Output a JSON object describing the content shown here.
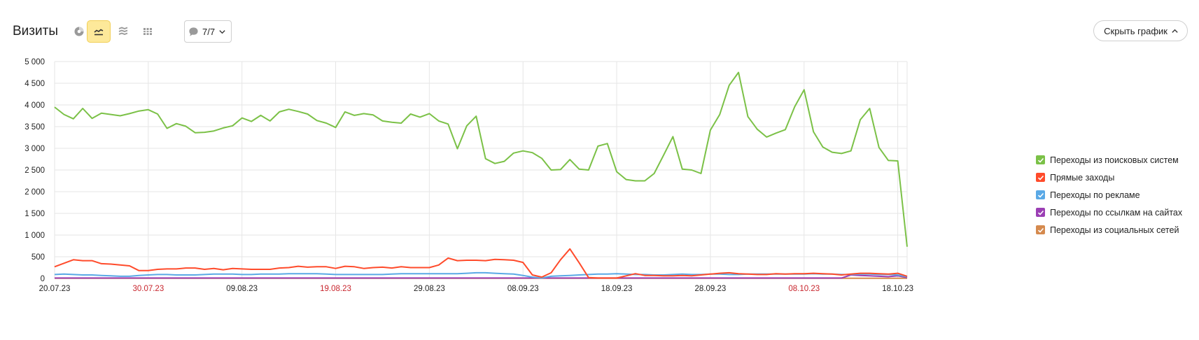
{
  "toolbar": {
    "title": "Визиты",
    "buttons": [
      {
        "icon": "pie-chart-icon",
        "active": false
      },
      {
        "icon": "line-chart-icon",
        "active": true
      },
      {
        "icon": "area-chart-icon",
        "active": false
      },
      {
        "icon": "column-chart-icon",
        "active": false
      }
    ],
    "comments_label": "7/7",
    "hide_label": "Скрыть график"
  },
  "colors": {
    "search": "#7bc147",
    "direct": "#ff4b2b",
    "ads": "#5aa9e6",
    "links": "#9b3fb4",
    "social": "#d58a4e",
    "grid": "#e6e6e6",
    "weekend_label": "#c8252d"
  },
  "chart_data": {
    "type": "line",
    "title": "",
    "xlabel": "",
    "ylabel": "",
    "ylim": [
      0,
      5000
    ],
    "y_ticks": [
      "0",
      "500",
      "1 000",
      "1 500",
      "2 000",
      "2 500",
      "3 000",
      "3 500",
      "4 000",
      "4 500",
      "5 000"
    ],
    "x_ticks": [
      {
        "label": "20.07.23",
        "index": 0,
        "weekend": false
      },
      {
        "label": "30.07.23",
        "index": 10,
        "weekend": true
      },
      {
        "label": "09.08.23",
        "index": 20,
        "weekend": false
      },
      {
        "label": "19.08.23",
        "index": 30,
        "weekend": true
      },
      {
        "label": "29.08.23",
        "index": 40,
        "weekend": false
      },
      {
        "label": "08.09.23",
        "index": 50,
        "weekend": false
      },
      {
        "label": "18.09.23",
        "index": 60,
        "weekend": false
      },
      {
        "label": "28.09.23",
        "index": 70,
        "weekend": false
      },
      {
        "label": "08.10.23",
        "index": 80,
        "weekend": true
      },
      {
        "label": "18.10.23",
        "index": 90,
        "weekend": false
      }
    ],
    "x_start": "2023-07-20",
    "grid": true,
    "legend_position": "right",
    "series": [
      {
        "name": "Переходы из поисковых систем",
        "color": "#7bc147",
        "values": [
          3950,
          3780,
          3680,
          3920,
          3690,
          3810,
          3780,
          3750,
          3800,
          3860,
          3890,
          3790,
          3460,
          3570,
          3510,
          3360,
          3370,
          3400,
          3470,
          3520,
          3700,
          3620,
          3760,
          3630,
          3840,
          3900,
          3850,
          3790,
          3640,
          3580,
          3480,
          3840,
          3760,
          3800,
          3770,
          3630,
          3600,
          3580,
          3790,
          3720,
          3800,
          3630,
          3560,
          2990,
          3520,
          3740,
          2760,
          2650,
          2700,
          2890,
          2940,
          2900,
          2770,
          2500,
          2510,
          2740,
          2520,
          2500,
          3050,
          3110,
          2460,
          2280,
          2250,
          2250,
          2420,
          2840,
          3270,
          2520,
          2500,
          2420,
          3420,
          3780,
          4450,
          4750,
          3730,
          3440,
          3260,
          3350,
          3430,
          3960,
          4350,
          3380,
          3030,
          2910,
          2880,
          2940,
          3660,
          3920,
          3020,
          2720,
          2710,
          730
        ]
      },
      {
        "name": "Прямые заходы",
        "color": "#ff4b2b",
        "values": [
          270,
          350,
          430,
          410,
          410,
          340,
          330,
          310,
          290,
          180,
          180,
          210,
          220,
          220,
          240,
          240,
          210,
          230,
          200,
          230,
          220,
          210,
          210,
          210,
          240,
          250,
          280,
          260,
          270,
          270,
          230,
          280,
          270,
          230,
          250,
          260,
          240,
          270,
          250,
          250,
          250,
          310,
          470,
          410,
          420,
          420,
          410,
          440,
          430,
          420,
          370,
          80,
          30,
          130,
          430,
          680,
          360,
          20,
          10,
          10,
          10,
          60,
          110,
          70,
          70,
          60,
          60,
          70,
          60,
          80,
          100,
          120,
          130,
          110,
          100,
          90,
          90,
          110,
          100,
          110,
          110,
          120,
          110,
          100,
          80,
          100,
          120,
          120,
          110,
          100,
          120,
          50
        ]
      },
      {
        "name": "Переходы по рекламе",
        "color": "#5aa9e6",
        "values": [
          90,
          100,
          90,
          80,
          80,
          70,
          60,
          50,
          50,
          70,
          80,
          90,
          90,
          80,
          80,
          80,
          90,
          100,
          100,
          100,
          90,
          90,
          100,
          100,
          100,
          110,
          110,
          110,
          110,
          100,
          90,
          90,
          90,
          90,
          90,
          90,
          100,
          110,
          110,
          110,
          110,
          110,
          110,
          110,
          120,
          130,
          130,
          120,
          110,
          100,
          70,
          30,
          10,
          50,
          60,
          70,
          80,
          90,
          100,
          100,
          110,
          100,
          90,
          90,
          80,
          80,
          90,
          100,
          90,
          90,
          100,
          100,
          90,
          90,
          100,
          100,
          100,
          100,
          100,
          100,
          100,
          110,
          100,
          100,
          90,
          90,
          100,
          100,
          90,
          90,
          80,
          40
        ]
      },
      {
        "name": "Переходы по ссылкам на сайтах",
        "color": "#9b3fb4",
        "values": [
          10,
          10,
          10,
          10,
          10,
          10,
          10,
          10,
          10,
          10,
          10,
          10,
          10,
          10,
          10,
          10,
          10,
          10,
          10,
          10,
          10,
          10,
          10,
          10,
          10,
          10,
          10,
          10,
          10,
          10,
          10,
          10,
          10,
          10,
          10,
          10,
          10,
          10,
          10,
          10,
          10,
          10,
          10,
          10,
          10,
          10,
          10,
          10,
          10,
          10,
          10,
          10,
          10,
          10,
          10,
          10,
          10,
          10,
          10,
          10,
          10,
          10,
          10,
          10,
          10,
          10,
          10,
          10,
          10,
          10,
          10,
          10,
          10,
          10,
          10,
          10,
          10,
          10,
          10,
          10,
          10,
          10,
          10,
          10,
          10,
          80,
          70,
          60,
          50,
          40,
          60,
          20
        ]
      },
      {
        "name": "Переходы из социальных сетей",
        "color": "#d58a4e",
        "values": [
          5,
          5,
          5,
          5,
          5,
          5,
          5,
          5,
          5,
          5,
          5,
          5,
          5,
          5,
          5,
          5,
          5,
          5,
          5,
          5,
          5,
          5,
          5,
          5,
          5,
          5,
          5,
          5,
          5,
          5,
          5,
          5,
          5,
          5,
          5,
          5,
          5,
          5,
          5,
          5,
          5,
          5,
          5,
          5,
          5,
          5,
          5,
          5,
          5,
          5,
          5,
          5,
          5,
          5,
          5,
          5,
          5,
          5,
          5,
          5,
          5,
          5,
          5,
          5,
          5,
          5,
          5,
          5,
          5,
          5,
          5,
          5,
          5,
          5,
          5,
          5,
          5,
          5,
          5,
          5,
          5,
          5,
          5,
          5,
          5,
          5,
          5,
          5,
          5,
          5,
          5,
          5
        ]
      }
    ]
  }
}
